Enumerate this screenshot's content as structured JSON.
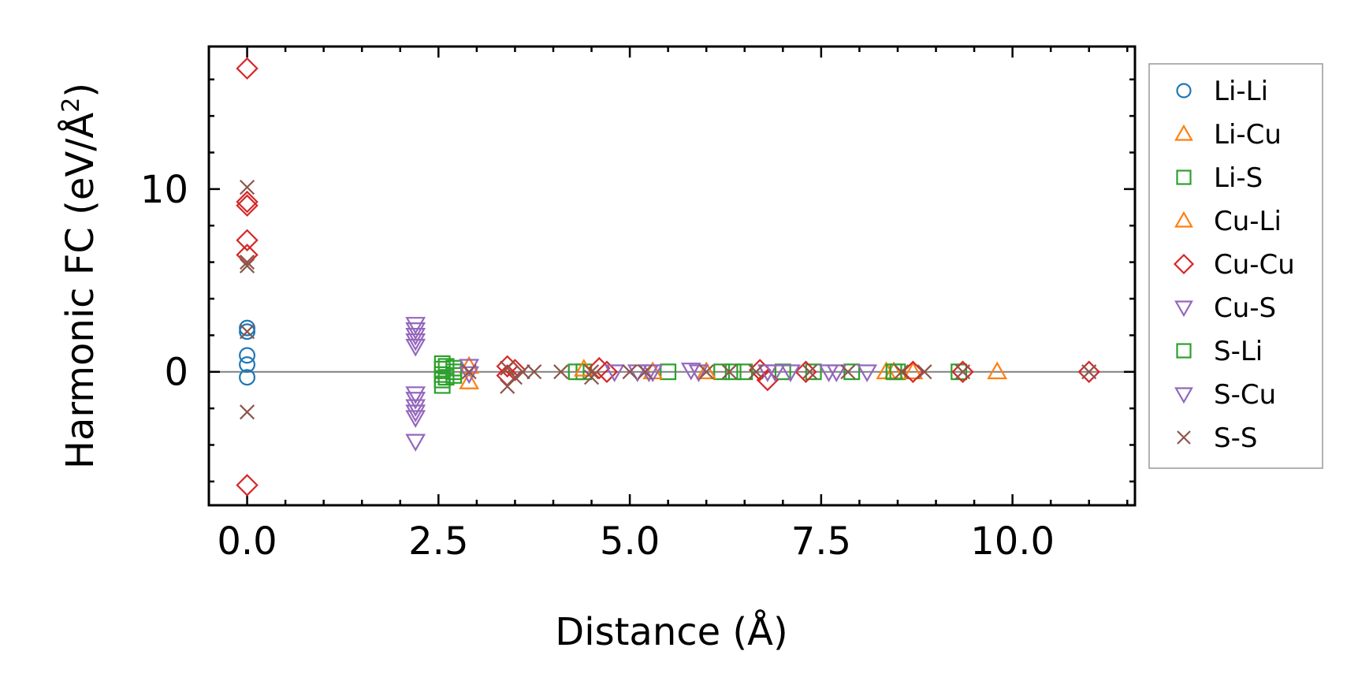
{
  "chart_data": {
    "type": "scatter",
    "title": "",
    "xlabel": "Distance (Å)",
    "ylabel_main": "Harmonic FC (eV/Å",
    "ylabel_sup": "2",
    "ylabel_close": ")",
    "xlim": [
      -0.5,
      11.6
    ],
    "ylim": [
      -7.3,
      17.8
    ],
    "xticks": [
      0,
      2.5,
      5,
      7.5,
      10
    ],
    "xtick_labels": [
      "0.0",
      "2.5",
      "5.0",
      "7.5",
      "10.0"
    ],
    "yticks": [
      0,
      10
    ],
    "ytick_labels": [
      "0",
      "10"
    ],
    "zero_line": true,
    "grid": false,
    "legend_position": "outside-right",
    "series": [
      {
        "name": "Li-Li",
        "marker": "circle",
        "color": "#1f77b4",
        "points": [
          [
            0,
            2.4
          ],
          [
            0,
            2.2
          ],
          [
            0,
            0.9
          ],
          [
            0,
            0.4
          ],
          [
            0,
            -0.3
          ]
        ]
      },
      {
        "name": "Li-Cu",
        "marker": "triangle-up",
        "color": "#ff7f0e",
        "points": [
          [
            2.9,
            -0.55
          ],
          [
            2.9,
            0.3
          ],
          [
            8.35,
            0
          ],
          [
            8.45,
            0
          ],
          [
            9.8,
            0
          ]
        ]
      },
      {
        "name": "Li-S",
        "marker": "square",
        "color": "#2ca02c",
        "points": [
          [
            2.55,
            0.45
          ],
          [
            2.55,
            0.15
          ],
          [
            2.55,
            -0.15
          ],
          [
            2.55,
            -0.45
          ],
          [
            2.55,
            -0.75
          ],
          [
            2.6,
            0.3
          ],
          [
            2.6,
            -0.3
          ],
          [
            2.7,
            0
          ],
          [
            2.7,
            0.2
          ],
          [
            2.7,
            -0.2
          ],
          [
            4.3,
            0
          ],
          [
            4.4,
            0
          ],
          [
            5.5,
            0
          ],
          [
            6.2,
            0
          ],
          [
            7.0,
            0
          ],
          [
            7.4,
            0
          ],
          [
            7.9,
            0
          ],
          [
            8.5,
            0
          ],
          [
            9.3,
            0
          ]
        ]
      },
      {
        "name": "Cu-Li",
        "marker": "triangle-up",
        "color": "#ff7f0e",
        "points": [
          [
            4.4,
            0.15
          ],
          [
            5.3,
            0
          ],
          [
            6.0,
            0
          ],
          [
            8.7,
            0
          ]
        ]
      },
      {
        "name": "Cu-Cu",
        "marker": "diamond",
        "color": "#d62728",
        "points": [
          [
            0,
            16.6
          ],
          [
            0,
            9.3
          ],
          [
            0,
            9.1
          ],
          [
            0,
            7.2
          ],
          [
            0,
            6.4
          ],
          [
            0,
            -6.2
          ],
          [
            3.4,
            0.3
          ],
          [
            3.4,
            -0.2
          ],
          [
            3.5,
            0.1
          ],
          [
            4.7,
            0
          ],
          [
            4.6,
            0.2
          ],
          [
            6.7,
            0.1
          ],
          [
            6.8,
            -0.45
          ],
          [
            7.3,
            0
          ],
          [
            8.7,
            0
          ],
          [
            9.35,
            0
          ],
          [
            11.0,
            0
          ]
        ]
      },
      {
        "name": "Cu-S",
        "marker": "triangle-down",
        "color": "#9467bd",
        "points": [
          [
            2.2,
            2.6
          ],
          [
            2.2,
            2.3
          ],
          [
            2.2,
            2.0
          ],
          [
            2.2,
            1.7
          ],
          [
            2.2,
            1.4
          ],
          [
            2.2,
            -1.2
          ],
          [
            2.2,
            -1.5
          ],
          [
            2.2,
            -1.9
          ],
          [
            2.2,
            -2.2
          ],
          [
            2.2,
            -2.5
          ],
          [
            2.2,
            -3.8
          ],
          [
            2.9,
            0.3
          ],
          [
            2.9,
            -0.1
          ],
          [
            4.8,
            0
          ],
          [
            5.1,
            0
          ],
          [
            5.3,
            0
          ],
          [
            5.8,
            0.1
          ],
          [
            5.9,
            0
          ],
          [
            6.9,
            0
          ],
          [
            7.6,
            0
          ],
          [
            8.1,
            0
          ]
        ]
      },
      {
        "name": "S-Li",
        "marker": "square",
        "color": "#2ca02c",
        "points": [
          [
            6.35,
            0
          ],
          [
            6.5,
            0
          ],
          [
            8.45,
            0
          ]
        ]
      },
      {
        "name": "S-Cu",
        "marker": "triangle-down",
        "color": "#9467bd",
        "points": [
          [
            5.25,
            0
          ],
          [
            6.8,
            0
          ],
          [
            7.1,
            0
          ],
          [
            7.7,
            0
          ]
        ]
      },
      {
        "name": "S-S",
        "marker": "x",
        "color": "#8c564b",
        "points": [
          [
            0,
            10.1
          ],
          [
            0,
            6.0
          ],
          [
            0,
            5.8
          ],
          [
            0,
            2.2
          ],
          [
            0,
            -2.2
          ],
          [
            2.9,
            0
          ],
          [
            3.4,
            0.2
          ],
          [
            3.4,
            -0.8
          ],
          [
            3.5,
            -0.3
          ],
          [
            3.6,
            0
          ],
          [
            3.75,
            0
          ],
          [
            4.1,
            0
          ],
          [
            4.5,
            0
          ],
          [
            4.5,
            -0.3
          ],
          [
            5.0,
            0
          ],
          [
            5.2,
            0
          ],
          [
            6.0,
            0
          ],
          [
            6.3,
            0
          ],
          [
            6.65,
            0
          ],
          [
            7.35,
            0
          ],
          [
            7.85,
            0
          ],
          [
            8.55,
            0
          ],
          [
            8.85,
            0
          ],
          [
            9.35,
            0
          ],
          [
            11.0,
            0
          ]
        ]
      }
    ]
  }
}
